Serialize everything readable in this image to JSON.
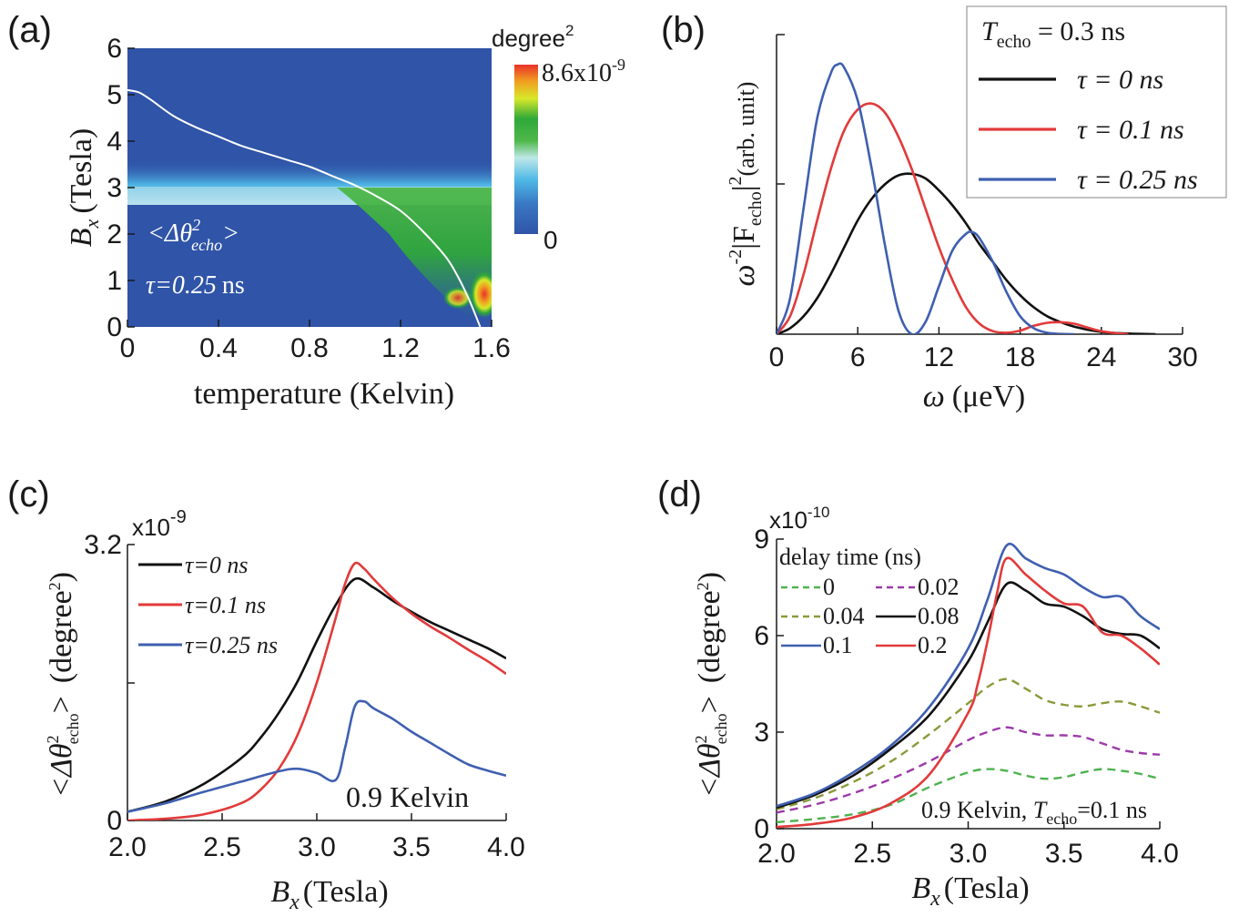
{
  "chart_data": [
    {
      "panel": "(a)",
      "type": "heatmap",
      "xlabel_text": "temperature (Kelvin)",
      "ylabel_main": "B",
      "ylabel_sub": "x",
      "ylabel_unit": "(Tesla)",
      "xticks": [
        "0",
        "0.4",
        "0.8",
        "1.2",
        "1.6"
      ],
      "xtick_values": [
        0,
        0.4,
        0.8,
        1.2,
        1.6
      ],
      "yticks": [
        "0",
        "1",
        "2",
        "3",
        "4",
        "5",
        "6"
      ],
      "ytick_values": [
        0,
        1,
        2,
        3,
        4,
        5,
        6
      ],
      "xlim": [
        0,
        1.6
      ],
      "ylim": [
        0,
        6
      ],
      "colorbar_title": "degree",
      "colorbar_title_sup": "2",
      "colorbar_max": "8.6x10",
      "colorbar_max_sup": "-9",
      "colorbar_min": "0",
      "annotation_quantity": "<Δθ",
      "annotation_sup": "2",
      "annotation_sub": "echo",
      "annotation_close": ">",
      "annotation_tau": "τ=0.25",
      "annotation_tau_unit": "ns",
      "boundary_curve": {
        "x": [
          0,
          0.05,
          0.1,
          0.2,
          0.3,
          0.4,
          0.5,
          0.6,
          0.7,
          0.8,
          0.9,
          1.0,
          1.1,
          1.2,
          1.3,
          1.4,
          1.45,
          1.5,
          1.55
        ],
        "y": [
          5.1,
          5.05,
          4.9,
          4.55,
          4.3,
          4.1,
          3.9,
          3.75,
          3.6,
          3.45,
          3.25,
          3.05,
          2.8,
          2.5,
          2.05,
          1.5,
          1.1,
          0.6,
          0.0
        ]
      },
      "colors": {
        "background": "#2f54a8",
        "band_light": "#4fb8e6",
        "band_green": "#2fa83a",
        "hot": "#e8322a",
        "line": "#ffffff"
      }
    },
    {
      "panel": "(b)",
      "type": "line",
      "xlabel_main": "ω",
      "xlabel_unit": "(μeV)",
      "ylabel_prefix": "ω",
      "ylabel_prefix_sup": "-2",
      "ylabel_F": "|F",
      "ylabel_F_sub": "echo",
      "ylabel_F_close": "|",
      "ylabel_sup2": "2",
      "ylabel_unit": "(arb. unit)",
      "xticks": [
        "0",
        "6",
        "12",
        "18",
        "24",
        "30"
      ],
      "xtick_values": [
        0,
        6,
        12,
        18,
        24,
        30
      ],
      "xlim": [
        0,
        30
      ],
      "ylim": [
        0,
        1.0
      ],
      "legend_title_T": "T",
      "legend_title_sub": "echo",
      "legend_title_rest": " = 0.3 ns",
      "series": [
        {
          "name": "τ = 0 ns",
          "color": "#111111",
          "x": [
            0,
            1,
            2,
            3,
            4,
            5,
            6,
            7,
            8,
            9,
            10,
            11,
            12,
            13,
            14,
            15,
            16,
            17,
            18,
            19,
            20,
            21,
            22,
            23,
            24,
            25,
            26,
            27,
            28
          ],
          "y": [
            0,
            0.02,
            0.06,
            0.12,
            0.2,
            0.29,
            0.38,
            0.45,
            0.5,
            0.53,
            0.535,
            0.52,
            0.48,
            0.43,
            0.37,
            0.3,
            0.24,
            0.18,
            0.13,
            0.09,
            0.06,
            0.04,
            0.025,
            0.015,
            0.008,
            0.004,
            0.002,
            0.001,
            0
          ]
        },
        {
          "name": "τ = 0.1 ns",
          "color": "#e23a3a",
          "x": [
            0,
            1,
            2,
            3,
            4,
            5,
            6,
            7,
            8,
            9,
            10,
            11,
            12,
            13,
            14,
            15,
            16,
            17,
            18,
            19,
            20,
            21,
            22,
            23,
            24,
            25,
            26
          ],
          "y": [
            0,
            0.06,
            0.2,
            0.38,
            0.55,
            0.68,
            0.75,
            0.77,
            0.74,
            0.66,
            0.55,
            0.42,
            0.29,
            0.18,
            0.09,
            0.035,
            0.01,
            0.005,
            0.012,
            0.028,
            0.038,
            0.04,
            0.035,
            0.022,
            0.01,
            0.004,
            0
          ]
        },
        {
          "name": "τ = 0.25 ns",
          "color": "#3f5fb0",
          "x": [
            0,
            1,
            2,
            3,
            4,
            4.5,
            5,
            6,
            7,
            8,
            9,
            10,
            11,
            12,
            13,
            14,
            14.5,
            15,
            16,
            17,
            18,
            19,
            20,
            21,
            22
          ],
          "y": [
            0,
            0.12,
            0.42,
            0.72,
            0.87,
            0.9,
            0.89,
            0.78,
            0.56,
            0.3,
            0.08,
            0.0,
            0.04,
            0.16,
            0.28,
            0.335,
            0.34,
            0.32,
            0.24,
            0.14,
            0.06,
            0.02,
            0.005,
            0.001,
            0
          ]
        }
      ]
    },
    {
      "panel": "(c)",
      "type": "line",
      "xlabel_main": "B",
      "xlabel_sub": "x",
      "xlabel_unit": "(Tesla)",
      "ylabel_main": "<Δθ",
      "ylabel_sup": "2",
      "ylabel_sub": "echo",
      "ylabel_close": ">",
      "ylabel_unit": "(degree",
      "ylabel_unit_sup": "2",
      "ylabel_unit_close": ")",
      "scale_text": "x10",
      "scale_exp": "-9",
      "xticks": [
        "2.0",
        "2.5",
        "3.0",
        "3.5",
        "4.0"
      ],
      "xtick_values": [
        2.0,
        2.5,
        3.0,
        3.5,
        4.0
      ],
      "yticks": [
        "0",
        "3.2"
      ],
      "ytick_values": [
        0,
        3.2
      ],
      "xlim": [
        2.0,
        4.0
      ],
      "ylim": [
        0,
        3.2
      ],
      "annotation": "0.9 Kelvin",
      "series": [
        {
          "name": "τ=0 ns",
          "color": "#111111",
          "x": [
            2.0,
            2.2,
            2.4,
            2.6,
            2.7,
            2.8,
            2.9,
            3.0,
            3.1,
            3.2,
            3.3,
            3.4,
            3.5,
            3.6,
            3.7,
            3.8,
            3.9,
            4.0
          ],
          "y": [
            0.1,
            0.22,
            0.42,
            0.72,
            0.95,
            1.25,
            1.62,
            2.08,
            2.5,
            2.8,
            2.7,
            2.55,
            2.42,
            2.3,
            2.2,
            2.1,
            2.0,
            1.88
          ]
        },
        {
          "name": "τ=0.1 ns",
          "color": "#e23a3a",
          "x": [
            2.0,
            2.2,
            2.4,
            2.6,
            2.7,
            2.8,
            2.9,
            3.0,
            3.1,
            3.15,
            3.2,
            3.25,
            3.3,
            3.4,
            3.5,
            3.6,
            3.7,
            3.8,
            3.9,
            4.0
          ],
          "y": [
            0.0,
            0.02,
            0.07,
            0.2,
            0.35,
            0.6,
            1.0,
            1.6,
            2.35,
            2.75,
            2.98,
            2.92,
            2.8,
            2.58,
            2.4,
            2.25,
            2.12,
            1.98,
            1.85,
            1.7
          ]
        },
        {
          "name": "τ=0.25 ns",
          "color": "#3f5fb0",
          "x": [
            2.0,
            2.2,
            2.4,
            2.6,
            2.8,
            2.9,
            3.0,
            3.1,
            3.15,
            3.2,
            3.25,
            3.3,
            3.4,
            3.5,
            3.6,
            3.7,
            3.8,
            3.9,
            4.0
          ],
          "y": [
            0.1,
            0.2,
            0.33,
            0.45,
            0.57,
            0.6,
            0.55,
            0.47,
            0.85,
            1.32,
            1.38,
            1.3,
            1.18,
            1.03,
            0.9,
            0.77,
            0.65,
            0.58,
            0.52
          ]
        }
      ]
    },
    {
      "panel": "(d)",
      "type": "line",
      "xlabel_main": "B",
      "xlabel_sub": "x",
      "xlabel_unit": "(Tesla)",
      "ylabel_main": "<Δθ",
      "ylabel_sup": "2",
      "ylabel_sub": "echo",
      "ylabel_close": ">",
      "ylabel_unit": "(degree",
      "ylabel_unit_sup": "2",
      "ylabel_unit_close": ")",
      "scale_text": "x10",
      "scale_exp": "-10",
      "xticks": [
        "2.0",
        "2.5",
        "3.0",
        "3.5",
        "4.0"
      ],
      "xtick_values": [
        2.0,
        2.5,
        3.0,
        3.5,
        4.0
      ],
      "yticks": [
        "0",
        "3",
        "6",
        "9"
      ],
      "ytick_values": [
        0,
        3,
        6,
        9
      ],
      "xlim": [
        2.0,
        4.0
      ],
      "ylim": [
        0,
        9
      ],
      "legend_title": "delay time (ns)",
      "annotation_text": "0.9 Kelvin, ",
      "annotation_T": "T",
      "annotation_sub": "echo",
      "annotation_rest": "=0.1 ns",
      "series": [
        {
          "name": "0",
          "color": "#4fb24f",
          "dash": true,
          "x": [
            2.0,
            2.2,
            2.4,
            2.6,
            2.8,
            3.0,
            3.1,
            3.2,
            3.3,
            3.4,
            3.5,
            3.6,
            3.7,
            3.8,
            3.9,
            4.0
          ],
          "y": [
            0.2,
            0.3,
            0.45,
            0.75,
            1.3,
            1.75,
            1.85,
            1.8,
            1.65,
            1.55,
            1.6,
            1.75,
            1.85,
            1.8,
            1.7,
            1.55
          ]
        },
        {
          "name": "0.02",
          "color": "#9b3aa8",
          "dash": true,
          "x": [
            2.0,
            2.2,
            2.4,
            2.6,
            2.8,
            3.0,
            3.1,
            3.2,
            3.3,
            3.4,
            3.5,
            3.6,
            3.7,
            3.8,
            3.9,
            4.0
          ],
          "y": [
            0.5,
            0.75,
            1.1,
            1.55,
            2.1,
            2.75,
            3.0,
            3.15,
            3.0,
            2.9,
            2.9,
            2.85,
            2.65,
            2.45,
            2.35,
            2.3
          ]
        },
        {
          "name": "0.04",
          "color": "#8a9a3a",
          "dash": true,
          "x": [
            2.0,
            2.2,
            2.4,
            2.6,
            2.8,
            3.0,
            3.1,
            3.2,
            3.3,
            3.4,
            3.5,
            3.6,
            3.7,
            3.8,
            3.9,
            4.0
          ],
          "y": [
            0.6,
            0.95,
            1.45,
            2.1,
            2.95,
            3.9,
            4.4,
            4.65,
            4.35,
            4.0,
            3.85,
            3.8,
            3.9,
            3.95,
            3.8,
            3.6
          ]
        },
        {
          "name": "0.08",
          "color": "#111111",
          "dash": false,
          "x": [
            2.0,
            2.2,
            2.4,
            2.6,
            2.8,
            3.0,
            3.1,
            3.2,
            3.3,
            3.4,
            3.5,
            3.6,
            3.7,
            3.8,
            3.9,
            4.0
          ],
          "y": [
            0.65,
            1.05,
            1.65,
            2.5,
            3.55,
            5.2,
            6.4,
            7.6,
            7.4,
            7.0,
            6.9,
            6.6,
            6.2,
            6.05,
            6.0,
            5.6
          ]
        },
        {
          "name": "0.1",
          "color": "#3f5fb0",
          "dash": false,
          "x": [
            2.0,
            2.2,
            2.4,
            2.6,
            2.8,
            3.0,
            3.1,
            3.2,
            3.3,
            3.4,
            3.5,
            3.6,
            3.7,
            3.8,
            3.9,
            4.0
          ],
          "y": [
            0.7,
            1.1,
            1.75,
            2.6,
            3.8,
            5.6,
            7.1,
            8.8,
            8.4,
            8.1,
            7.9,
            7.5,
            7.2,
            7.2,
            6.6,
            6.2
          ]
        },
        {
          "name": "0.2",
          "color": "#e23a3a",
          "dash": false,
          "x": [
            2.0,
            2.2,
            2.4,
            2.6,
            2.8,
            3.0,
            3.05,
            3.1,
            3.15,
            3.2,
            3.3,
            3.4,
            3.5,
            3.6,
            3.7,
            3.8,
            3.9,
            4.0
          ],
          "y": [
            0.05,
            0.15,
            0.35,
            0.8,
            1.7,
            3.6,
            4.5,
            5.8,
            7.3,
            8.4,
            7.9,
            7.4,
            7.0,
            6.9,
            6.1,
            6.0,
            5.6,
            5.1
          ]
        }
      ]
    }
  ],
  "labels": {
    "a": "(a)",
    "b": "(b)",
    "c": "(c)",
    "d": "(d)"
  }
}
